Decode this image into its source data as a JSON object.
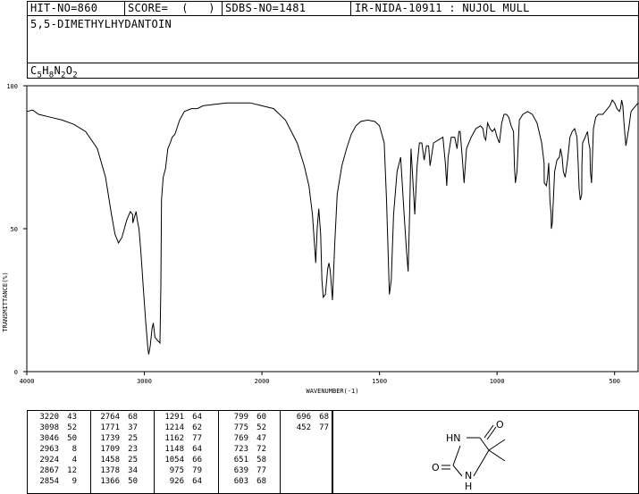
{
  "header": {
    "hit_no": "HIT-NO=860",
    "score": "SCORE=  (   )",
    "sdbs_no": "SDBS-NO=1481",
    "ir_code": "IR-NIDA-10911 : NUJOL MULL"
  },
  "compound": {
    "name": "5,5-DIMETHYLHYDANTOIN",
    "formula_parts": [
      {
        "t": "C",
        "sub": "5"
      },
      {
        "t": "H",
        "sub": "8"
      },
      {
        "t": "N",
        "sub": "2"
      },
      {
        "t": "O",
        "sub": "2"
      }
    ]
  },
  "chart_data": {
    "type": "line",
    "xlabel": "WAVENUMBER(-1)",
    "ylabel": "TRANSMITTANCE(%)",
    "xlim": [
      4000,
      400
    ],
    "ylim": [
      0,
      100
    ],
    "x_ticks": [
      4000,
      3000,
      2000,
      1500,
      1000,
      500
    ],
    "y_ticks": [
      0,
      50,
      100
    ],
    "series": [
      {
        "x": [
          4000,
          3950,
          3900,
          3800,
          3700,
          3600,
          3500,
          3400,
          3330,
          3280,
          3250,
          3220,
          3190,
          3150,
          3120,
          3100,
          3098,
          3085,
          3070,
          3060,
          3046,
          3030,
          3010,
          2990,
          2970,
          2963,
          2950,
          2935,
          2924,
          2910,
          2890,
          2867,
          2860,
          2854,
          2840,
          2820,
          2800,
          2780,
          2764,
          2740,
          2700,
          2660,
          2600,
          2550,
          2500,
          2400,
          2300,
          2200,
          2100,
          2000,
          1950,
          1900,
          1850,
          1820,
          1800,
          1785,
          1771,
          1765,
          1758,
          1750,
          1745,
          1739,
          1730,
          1720,
          1715,
          1709,
          1700,
          1690,
          1680,
          1660,
          1640,
          1620,
          1600,
          1580,
          1550,
          1520,
          1500,
          1480,
          1470,
          1458,
          1450,
          1440,
          1425,
          1410,
          1395,
          1385,
          1378,
          1372,
          1366,
          1360,
          1350,
          1340,
          1330,
          1320,
          1310,
          1300,
          1291,
          1285,
          1270,
          1250,
          1230,
          1220,
          1214,
          1208,
          1195,
          1180,
          1170,
          1162,
          1157,
          1148,
          1140,
          1130,
          1110,
          1090,
          1070,
          1060,
          1054,
          1048,
          1040,
          1030,
          1020,
          1010,
          1000,
          990,
          980,
          970,
          960,
          950,
          940,
          930,
          926,
          922,
          915,
          905,
          890,
          870,
          850,
          830,
          810,
          800,
          799,
          790,
          785,
          780,
          775,
          770,
          769,
          765,
          755,
          745,
          735,
          730,
          723,
          718,
          710,
          700,
          690,
          680,
          670,
          660,
          655,
          651,
          646,
          640,
          639,
          636,
          625,
          615,
          610,
          605,
          603,
          598,
          590,
          580,
          570,
          560,
          550,
          540,
          530,
          520,
          510,
          500,
          490,
          480,
          475,
          470,
          465,
          460,
          455,
          452,
          448,
          440,
          430,
          420,
          410,
          400
        ],
        "y": [
          91,
          91.5,
          90,
          89,
          88,
          86.5,
          84,
          78,
          68,
          55,
          48,
          45,
          47,
          53,
          56,
          55,
          52,
          54,
          56,
          53,
          50,
          42,
          30,
          18,
          8,
          6,
          9,
          15,
          17,
          12,
          11,
          10,
          30,
          60,
          68,
          71,
          78,
          80,
          82,
          83,
          88,
          91,
          92,
          92,
          93,
          93.5,
          94,
          94,
          94,
          93,
          92,
          88,
          80,
          72,
          65,
          55,
          38,
          50,
          57,
          48,
          32,
          26,
          27,
          36,
          38,
          35,
          25,
          45,
          62,
          72,
          78,
          83,
          86,
          87.5,
          88,
          87.5,
          86,
          80,
          60,
          27,
          32,
          55,
          70,
          75,
          55,
          42,
          35,
          55,
          78,
          70,
          55,
          72,
          80,
          80,
          74,
          79,
          79,
          72,
          80,
          81,
          82,
          73,
          65,
          75,
          82,
          82,
          78,
          84,
          84,
          75,
          66,
          78,
          82,
          85,
          86,
          85,
          82,
          81,
          87,
          85,
          84,
          85,
          82,
          80,
          87,
          90,
          90,
          89,
          86,
          84,
          72,
          66,
          70,
          88,
          90,
          91,
          90,
          87,
          80,
          73,
          66,
          65,
          68,
          73,
          60,
          55,
          50,
          52,
          70,
          74,
          75,
          78,
          75,
          70,
          68,
          74,
          82,
          84,
          85,
          82,
          73,
          64,
          60,
          62,
          72,
          80,
          82,
          84,
          80,
          78,
          70,
          66,
          85,
          89,
          90,
          90,
          90,
          91,
          92,
          93,
          95,
          94,
          92,
          91,
          92,
          95,
          93,
          87,
          82,
          79,
          81,
          85,
          91,
          92,
          93,
          94
        ]
      }
    ],
    "peaks": [
      [
        3220,
        43
      ],
      [
        3098,
        52
      ],
      [
        3046,
        50
      ],
      [
        2963,
        8
      ],
      [
        2924,
        4
      ],
      [
        2867,
        12
      ],
      [
        2854,
        9
      ],
      [
        2764,
        68
      ],
      [
        1771,
        37
      ],
      [
        1739,
        25
      ],
      [
        1709,
        23
      ],
      [
        1458,
        25
      ],
      [
        1378,
        34
      ],
      [
        1366,
        50
      ],
      [
        1291,
        64
      ],
      [
        1214,
        62
      ],
      [
        1162,
        77
      ],
      [
        1148,
        64
      ],
      [
        1054,
        66
      ],
      [
        975,
        79
      ],
      [
        926,
        64
      ],
      [
        799,
        60
      ],
      [
        775,
        52
      ],
      [
        769,
        47
      ],
      [
        723,
        72
      ],
      [
        651,
        58
      ],
      [
        639,
        77
      ],
      [
        603,
        68
      ],
      [
        696,
        68
      ],
      [
        452,
        77
      ]
    ]
  },
  "structure": {
    "atoms": [
      "O",
      "HN",
      "O",
      "N",
      "H"
    ]
  }
}
